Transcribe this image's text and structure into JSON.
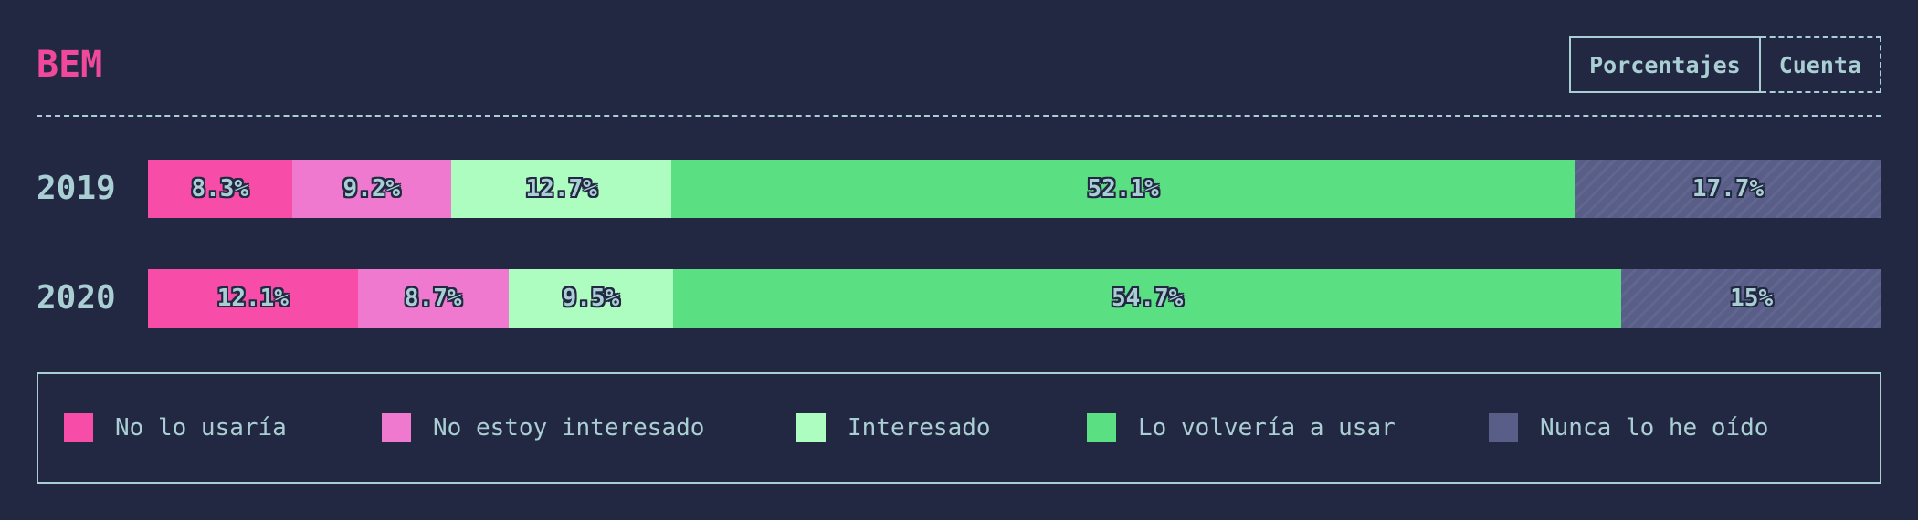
{
  "header": {
    "title": "BEM",
    "toggle": {
      "percent_label": "Porcentajes",
      "count_label": "Cuenta"
    }
  },
  "colors": {
    "background": "#232842",
    "text": "#a9cfd4",
    "title": "#f0499b",
    "categories": [
      "#f74ca8",
      "#ee79ce",
      "#adfdc1",
      "#5bdf83",
      "#585e87"
    ]
  },
  "chart_data": {
    "type": "bar",
    "orientation": "horizontal",
    "stacked": true,
    "normalized": true,
    "title": "BEM",
    "categories": [
      "2019",
      "2020"
    ],
    "series": [
      {
        "name": "No lo usaría",
        "values": [
          8.3,
          12.1
        ],
        "labels": [
          "8.3%",
          "12.1%"
        ]
      },
      {
        "name": "No estoy interesado",
        "values": [
          9.2,
          8.7
        ],
        "labels": [
          "9.2%",
          "8.7%"
        ]
      },
      {
        "name": "Interesado",
        "values": [
          12.7,
          9.5
        ],
        "labels": [
          "12.7%",
          "9.5%"
        ]
      },
      {
        "name": "Lo volvería a usar",
        "values": [
          52.1,
          54.7
        ],
        "labels": [
          "52.1%",
          "54.7%"
        ]
      },
      {
        "name": "Nunca lo he oído",
        "values": [
          17.7,
          15.0
        ],
        "labels": [
          "17.7%",
          "15%"
        ]
      }
    ],
    "xlim": [
      0,
      100
    ],
    "legend_position": "bottom",
    "grid": false
  }
}
